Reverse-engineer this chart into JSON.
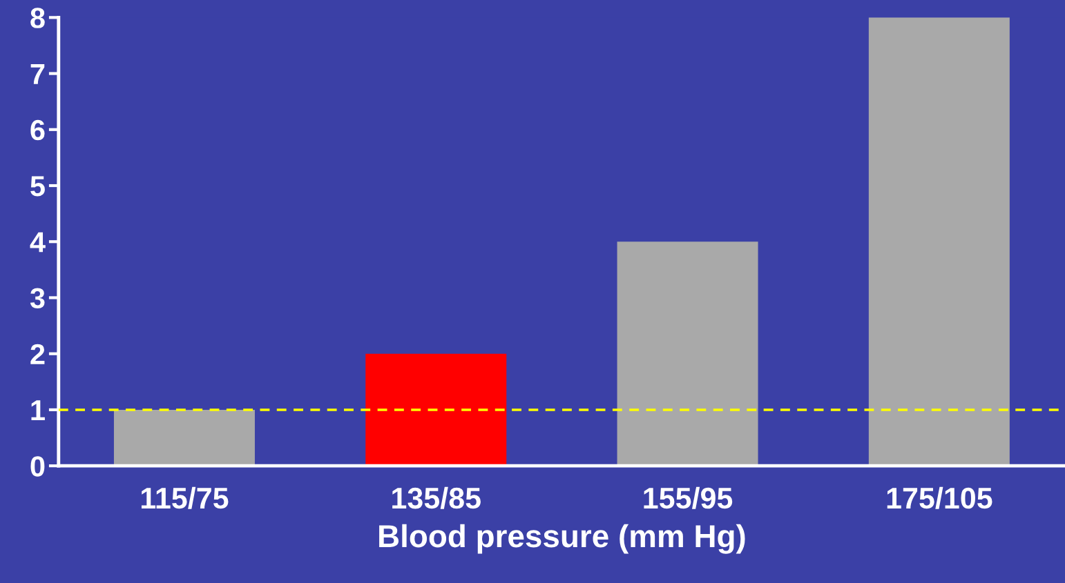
{
  "chart_data": {
    "type": "bar",
    "xlabel": "Blood pressure (mm Hg)",
    "categories": [
      "115/75",
      "135/85",
      "155/95",
      "175/105"
    ],
    "values": [
      1,
      2,
      4,
      8
    ],
    "colors": [
      "#a9a9a9",
      "#ff0000",
      "#a9a9a9",
      "#a9a9a9"
    ],
    "ylim": [
      0,
      8
    ],
    "yticks": [
      0,
      1,
      2,
      3,
      4,
      5,
      6,
      7,
      8
    ],
    "grid": false,
    "ref_lines": [
      {
        "axis": "y",
        "value": 1,
        "color": "#ffff00",
        "line_style": "dashed"
      }
    ]
  }
}
